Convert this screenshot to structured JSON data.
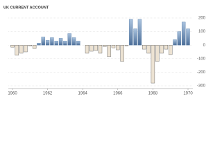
{
  "chart_data": {
    "type": "bar",
    "title": "UK CURRENT ACCOUNT",
    "categories": [
      "1960",
      null,
      null,
      null,
      null,
      null,
      null,
      null,
      "1962",
      null,
      null,
      null,
      null,
      null,
      null,
      null,
      "1964",
      null,
      null,
      null,
      null,
      null,
      null,
      null,
      "1966",
      null,
      null,
      null,
      null,
      null,
      null,
      null,
      "1968",
      null,
      null,
      null,
      null,
      null,
      null,
      null,
      "1970"
    ],
    "values": [
      -15,
      -75,
      -60,
      -50,
      -5,
      -25,
      15,
      60,
      35,
      55,
      30,
      50,
      30,
      85,
      55,
      30,
      0,
      -60,
      -45,
      -40,
      -60,
      -10,
      -85,
      -20,
      -35,
      -120,
      -5,
      190,
      120,
      190,
      -30,
      -60,
      -280,
      -120,
      -60,
      -30,
      -70,
      40,
      100,
      170,
      120
    ],
    "positive_color": "#5b80ab",
    "negative_color": "#ece2d2",
    "ylim": [
      -300,
      200
    ],
    "yticks": [
      200,
      100,
      0,
      -100,
      -200,
      -300
    ],
    "grid": true
  }
}
